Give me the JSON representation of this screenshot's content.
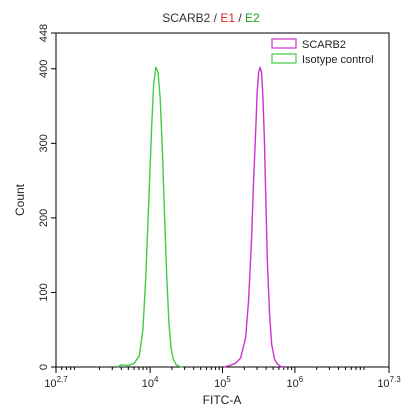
{
  "chart_data": {
    "type": "line",
    "title_parts": [
      {
        "text": "SCARB2",
        "color": "#333333"
      },
      {
        "text": " / ",
        "color": "#333333"
      },
      {
        "text": "E1",
        "color": "#e02020"
      },
      {
        "text": " / ",
        "color": "#333333"
      },
      {
        "text": "E2",
        "color": "#1a9a1a"
      }
    ],
    "xlabel": "FITC-A",
    "ylabel": "Count",
    "x_scale": "log",
    "xlim_exp": [
      2.7,
      7.3
    ],
    "x_ticks": [
      {
        "base": "10",
        "exp": "2.7",
        "value_exp": 2.7
      },
      {
        "base": "10",
        "exp": "4",
        "value_exp": 4
      },
      {
        "base": "10",
        "exp": "5",
        "value_exp": 5
      },
      {
        "base": "10",
        "exp": "6",
        "value_exp": 6
      },
      {
        "base": "10",
        "exp": "7.3",
        "value_exp": 7.3
      }
    ],
    "ylim": [
      0,
      448
    ],
    "y_ticks": [
      0,
      100,
      200,
      300,
      400,
      448
    ],
    "legend_position": "top-right",
    "series": [
      {
        "name": "SCARB2",
        "color": "#cc33cc",
        "x_exp": [
          5.02,
          5.1,
          5.18,
          5.25,
          5.32,
          5.36,
          5.4,
          5.43,
          5.46,
          5.48,
          5.5,
          5.52,
          5.54,
          5.56,
          5.58,
          5.6,
          5.62,
          5.65,
          5.68,
          5.72,
          5.76,
          5.8,
          5.86
        ],
        "y": [
          0,
          2,
          5,
          12,
          40,
          90,
          170,
          250,
          320,
          370,
          395,
          402,
          395,
          360,
          300,
          220,
          140,
          70,
          30,
          10,
          4,
          1,
          0
        ]
      },
      {
        "name": "Isotype control",
        "color": "#44cc44",
        "x_exp": [
          3.55,
          3.6,
          3.7,
          3.78,
          3.85,
          3.9,
          3.94,
          3.98,
          4.02,
          4.05,
          4.08,
          4.11,
          4.14,
          4.17,
          4.2,
          4.23,
          4.26,
          4.29,
          4.32,
          4.36,
          4.4,
          4.45
        ],
        "y": [
          0,
          3,
          2,
          5,
          15,
          50,
          120,
          220,
          320,
          380,
          402,
          395,
          360,
          290,
          200,
          120,
          60,
          25,
          10,
          3,
          1,
          0
        ]
      }
    ]
  }
}
